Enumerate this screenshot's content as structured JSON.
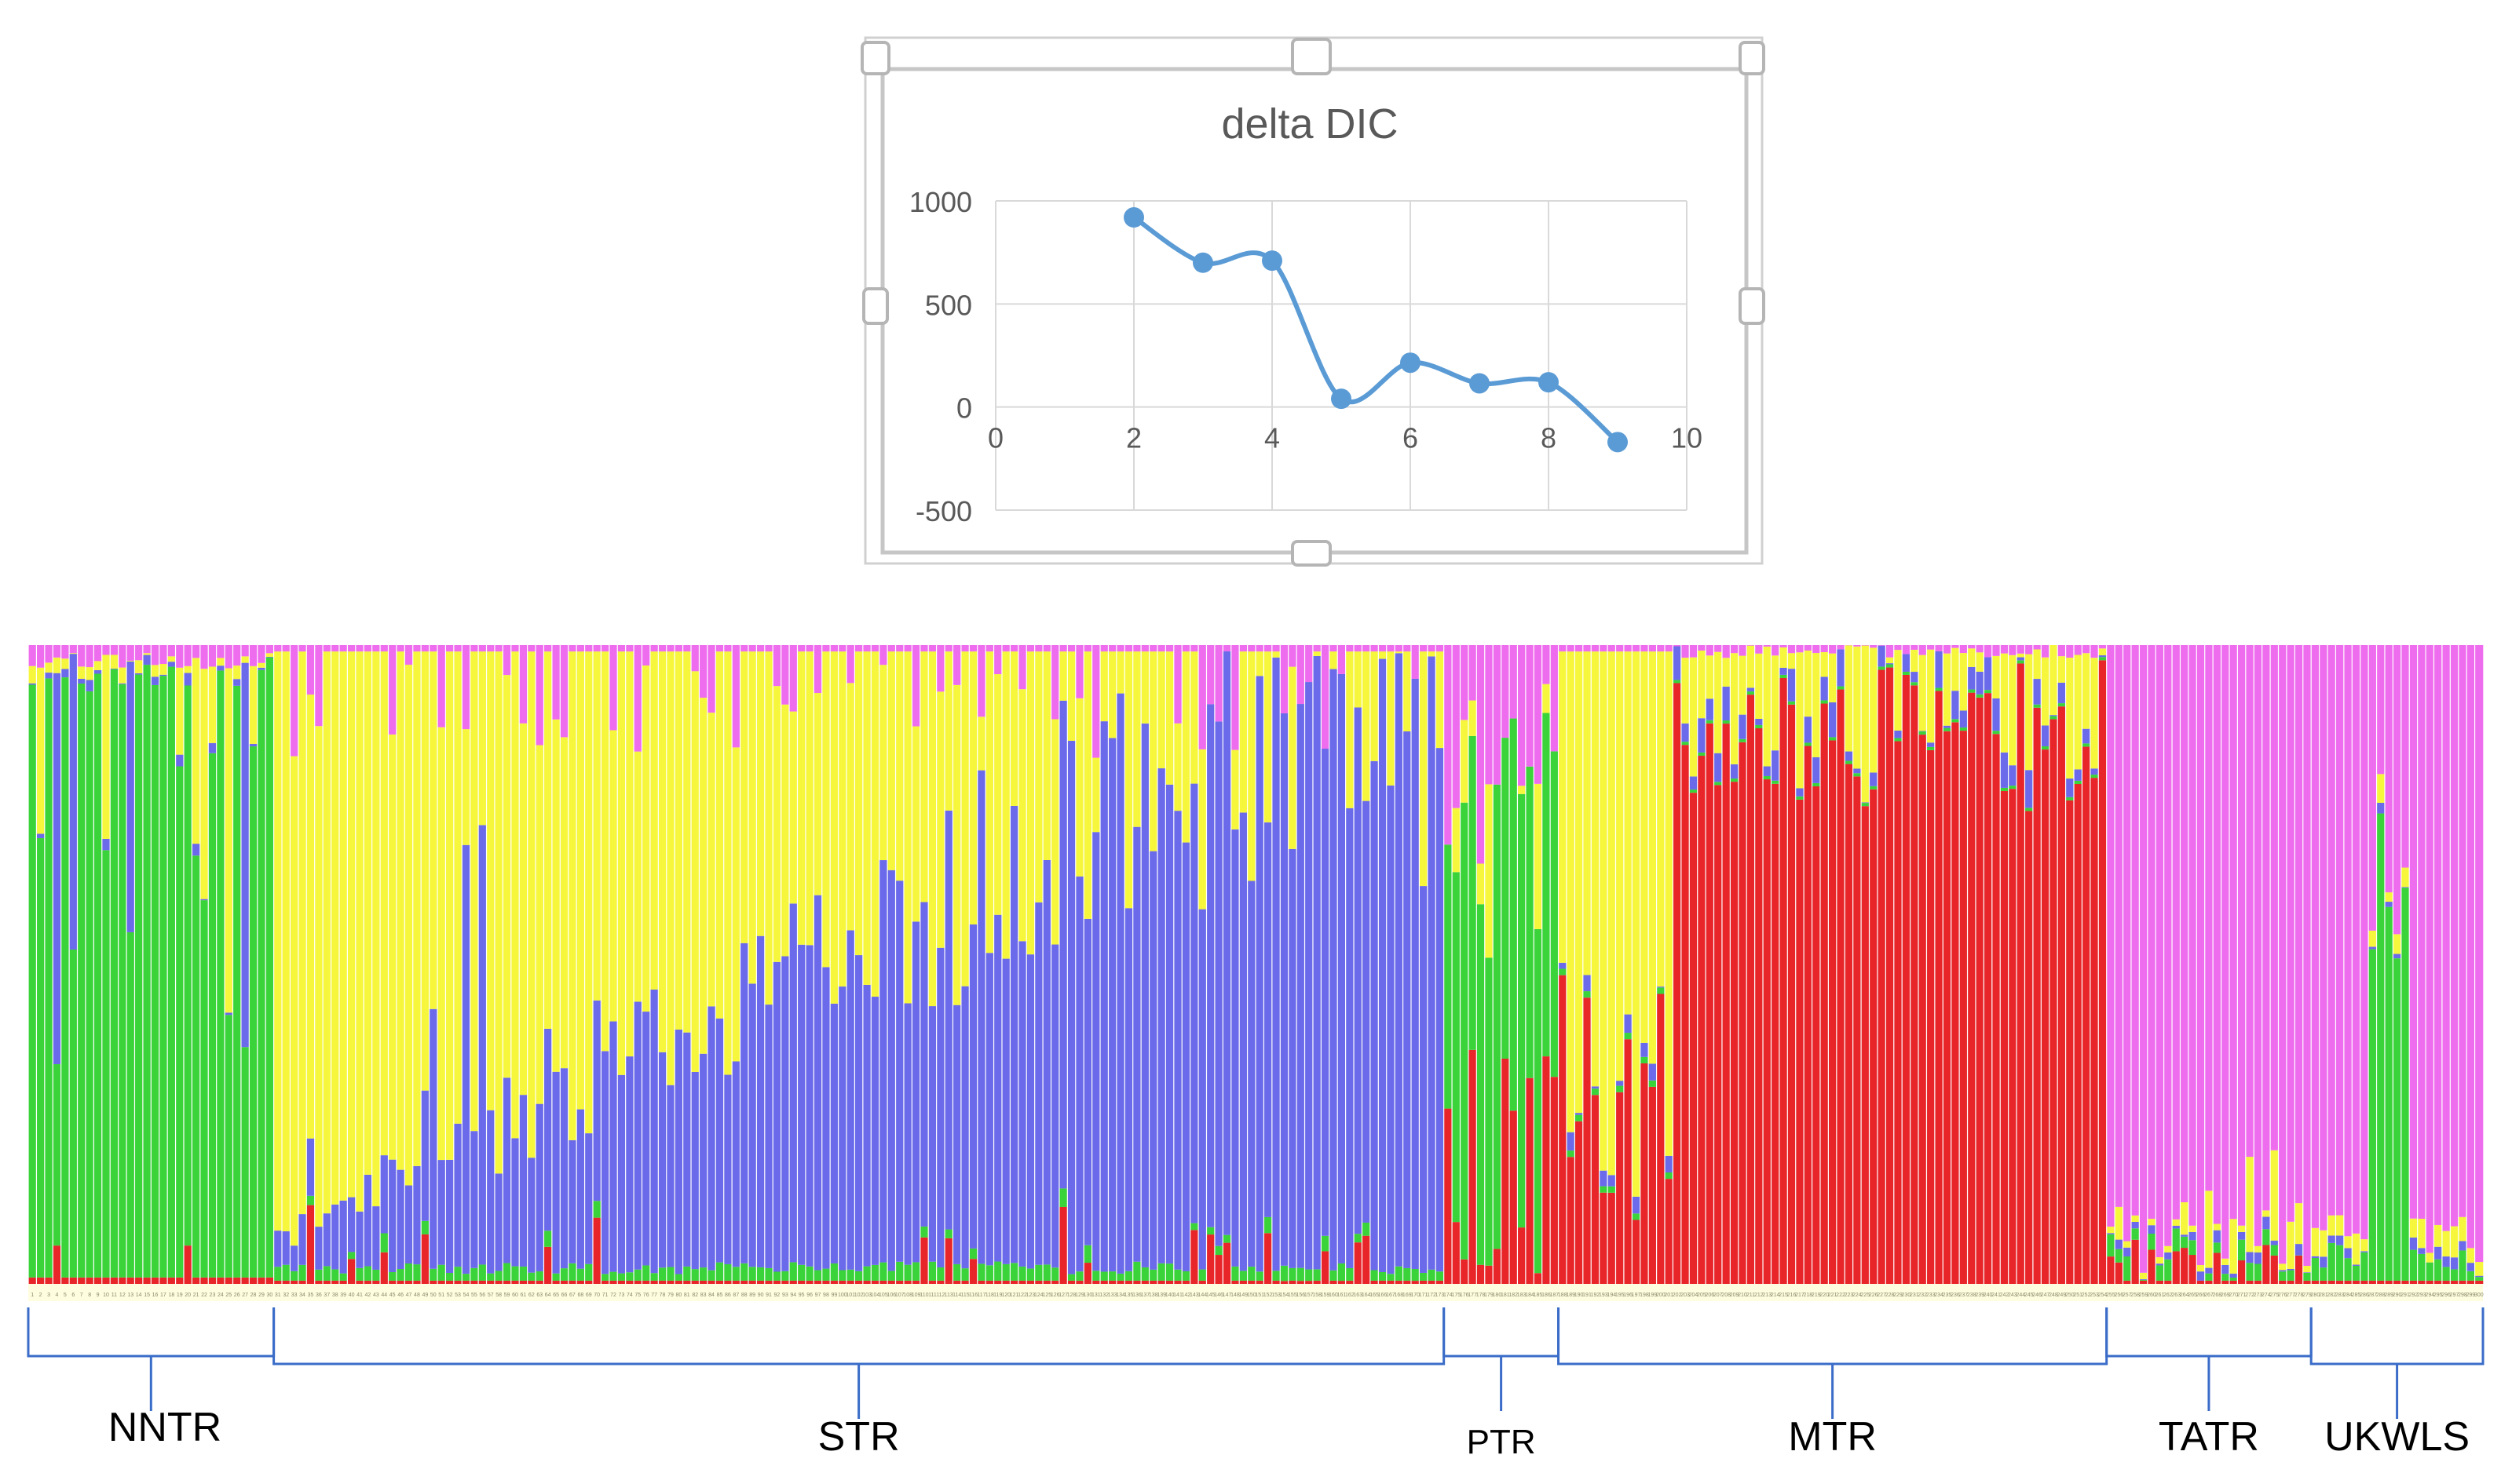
{
  "chart_data": [
    {
      "type": "line",
      "title": "delta DIC",
      "xlabel": "",
      "ylabel": "",
      "x": [
        2,
        3,
        4,
        5,
        6,
        7,
        8,
        9
      ],
      "y": [
        920,
        700,
        710,
        40,
        215,
        115,
        120,
        -170
      ],
      "xlim": [
        0,
        10
      ],
      "ylim": [
        -500,
        1000
      ],
      "x_ticks": [
        "0",
        "2",
        "4",
        "6",
        "8",
        "10"
      ],
      "y_ticks": [
        "1000",
        "500",
        "0",
        "-500"
      ],
      "grid": true,
      "smooth": true,
      "series_color": "#5b9bd5"
    },
    {
      "type": "bar",
      "subtype": "stacked-100-percent",
      "title": "",
      "colors": {
        "red": "#e8262a",
        "green": "#3ad33a",
        "blue": "#6a6aea",
        "yellow": "#f6f63c",
        "magenta": "#ee6cee"
      },
      "component_order": [
        "red",
        "green",
        "blue",
        "yellow",
        "magenta"
      ],
      "individuals": 300,
      "populations": [
        {
          "name": "NNTR",
          "count": 30,
          "profile": "green"
        },
        {
          "name": "STR",
          "count": 143,
          "profile": "yellow-blue"
        },
        {
          "name": "PTR",
          "count": 14,
          "profile": "green-red"
        },
        {
          "name": "MTR",
          "count": 67,
          "profile": "red"
        },
        {
          "name": "TATR",
          "count": 25,
          "profile": "magenta"
        },
        {
          "name": "UKWLS",
          "count": 21,
          "profile": "magenta-green"
        }
      ]
    }
  ]
}
